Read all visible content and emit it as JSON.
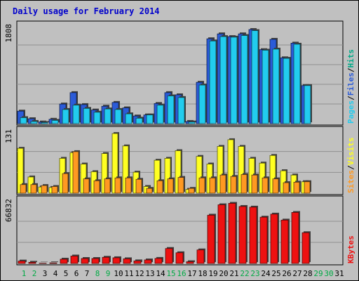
{
  "chart_data": {
    "type": "bar",
    "title": "Daily usage for February 2014",
    "categories": [
      "1",
      "2",
      "3",
      "4",
      "5",
      "6",
      "7",
      "8",
      "9",
      "10",
      "11",
      "12",
      "13",
      "14",
      "15",
      "16",
      "17",
      "18",
      "19",
      "20",
      "21",
      "22",
      "23",
      "24",
      "25",
      "26",
      "27",
      "28",
      "29",
      "30",
      "31"
    ],
    "weekend_days": [
      "1",
      "2",
      "8",
      "9",
      "15",
      "16",
      "22",
      "23"
    ],
    "missing_days": [
      "29",
      "30",
      "31"
    ],
    "panels": [
      {
        "id": "top",
        "max_label": "1808",
        "ylim": [
          0,
          1808
        ],
        "series": [
          {
            "name": "Hits",
            "color": "#00aa88",
            "values": []
          },
          {
            "name": "Files",
            "color": "#2b5bd8",
            "values": [
              230,
              90,
              30,
              80,
              360,
              570,
              350,
              250,
              320,
              390,
              290,
              140,
              160,
              370,
              570,
              530,
              40,
              760,
              1560,
              1650,
              1600,
              1650,
              1730,
              1360,
              1550,
              1210,
              1480,
              700
            ]
          },
          {
            "name": "Pages",
            "color": "#22ccee",
            "values": [
              110,
              40,
              20,
              60,
              260,
              340,
              280,
              210,
              270,
              260,
              180,
              100,
              160,
              340,
              510,
              480,
              30,
              710,
              1520,
              1600,
              1590,
              1620,
              1710,
              1350,
              1370,
              1200,
              1460,
              700
            ]
          }
        ]
      },
      {
        "id": "mid",
        "max_label": "131",
        "ylim": [
          0,
          131
        ],
        "series": [
          {
            "name": "Visits",
            "color": "#ffff22",
            "values": [
              94,
              34,
              13,
              12,
              73,
              85,
              61,
              45,
              83,
              125,
              99,
              44,
              14,
              69,
              73,
              89,
              8,
              77,
              61,
              98,
              112,
              98,
              73,
              63,
              79,
              47,
              38,
              24
            ]
          },
          {
            "name": "Sites",
            "color": "#ff9922",
            "values": [
              18,
              18,
              16,
              14,
              41,
              87,
              30,
              26,
              30,
              32,
              32,
              29,
              10,
              26,
              30,
              33,
              10,
              32,
              32,
              38,
              35,
              39,
              38,
              32,
              30,
              22,
              23,
              24
            ]
          }
        ]
      },
      {
        "id": "bot",
        "max_label": "66832",
        "ylim": [
          0,
          66832
        ],
        "series": [
          {
            "name": "KBytes",
            "color": "#ee1111",
            "values": [
              2500,
              1200,
              300,
              600,
              4500,
              7800,
              5200,
              5200,
              6500,
              6000,
              4900,
              2700,
              3700,
              5300,
              15800,
              11300,
              1800,
              14300,
              51000,
              62000,
              63500,
              60200,
              59500,
              48900,
              52100,
              45800,
              53900,
              32500
            ]
          }
        ]
      }
    ],
    "legend_text": {
      "top": [
        {
          "text": "Pages",
          "color": "#22ccee"
        },
        {
          "text": "/",
          "color": "#000000"
        },
        {
          "text": "Files",
          "color": "#2b5bd8"
        },
        {
          "text": "/",
          "color": "#000000"
        },
        {
          "text": "Hits",
          "color": "#00aa88"
        }
      ],
      "mid": [
        {
          "text": "Sites",
          "color": "#ff9922"
        },
        {
          "text": "/",
          "color": "#000000"
        },
        {
          "text": "Visits",
          "color": "#ffff22"
        }
      ],
      "bot": [
        {
          "text": "KBytes",
          "color": "#ee1111"
        }
      ]
    },
    "colors": {
      "background": "#c0c0c0",
      "title_text": "#0000cc",
      "weekend_label": "#00aa44",
      "missing_label": "#00aa44",
      "weekday_label": "#000000",
      "gridline": "#909090"
    }
  }
}
